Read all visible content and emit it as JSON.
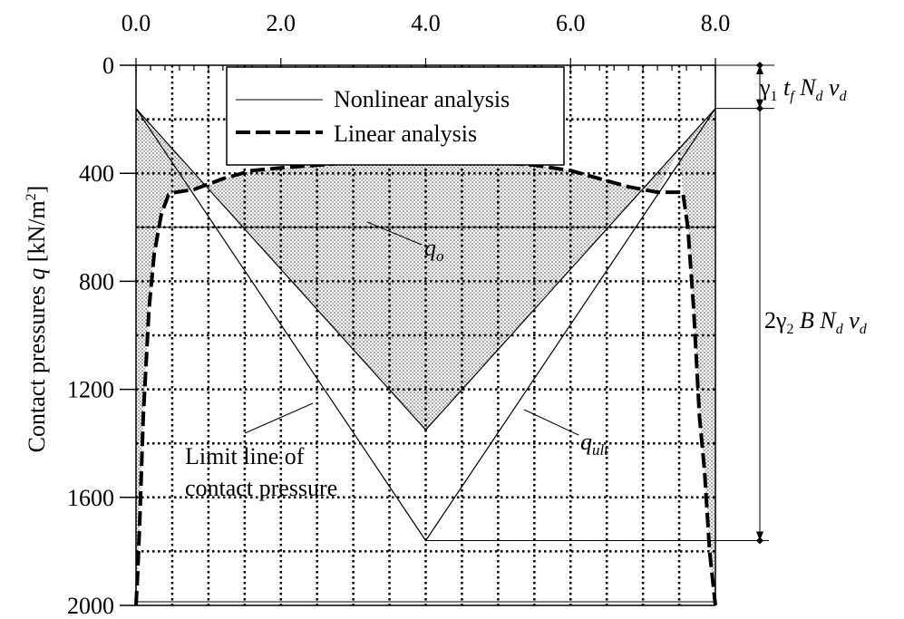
{
  "chart_data": {
    "type": "line",
    "ylabel": "Contact pressures q [kN/m²]",
    "ylabel_plain": "Contact pressures ",
    "ylabel_var": "q",
    "ylabel_unit": " [kN/m",
    "ylabel_sup": "2",
    "ylabel_end": "]",
    "xlim": [
      0,
      8.0
    ],
    "ylim": [
      2000,
      0
    ],
    "y_inverted": true,
    "x_ticks": [
      0.0,
      2.0,
      4.0,
      6.0,
      8.0
    ],
    "x_tick_labels": [
      "0.0",
      "2.0",
      "4.0",
      "6.0",
      "8.0"
    ],
    "y_ticks": [
      0,
      400,
      800,
      1200,
      1600,
      2000
    ],
    "y_tick_labels": [
      "0",
      "400",
      "800",
      "1200",
      "1600",
      "2000"
    ],
    "grid": true,
    "legend_position": "top-center",
    "series": [
      {
        "name": "Nonlinear analysis",
        "style": "thin-solid",
        "x": [
          0.0,
          4.0,
          8.0
        ],
        "y": [
          160,
          1350,
          160
        ]
      },
      {
        "name": "Linear analysis",
        "style": "thick-dashed",
        "x": [
          0.0,
          0.02,
          0.05,
          0.1,
          0.18,
          0.25,
          0.35,
          0.45,
          0.55,
          0.8,
          1.2,
          1.6,
          2.0,
          2.5,
          3.0,
          3.5,
          4.0,
          4.5,
          5.0,
          5.5,
          6.0,
          6.4,
          6.8,
          7.2,
          7.55,
          7.62,
          7.7,
          7.78,
          7.85,
          7.92,
          7.96,
          8.0
        ],
        "y": [
          2000,
          1900,
          1700,
          1300,
          900,
          700,
          550,
          480,
          470,
          460,
          420,
          390,
          380,
          370,
          360,
          355,
          355,
          355,
          360,
          370,
          390,
          420,
          450,
          470,
          470,
          600,
          900,
          1300,
          1500,
          1800,
          1900,
          2000
        ]
      },
      {
        "name": "Limit line of contact pressure",
        "style": "thin-solid",
        "x": [
          0.0,
          4.0,
          8.0
        ],
        "y": [
          160,
          1760,
          160
        ]
      }
    ],
    "reference_lines": [
      {
        "label": "q_o",
        "y": 600
      },
      {
        "y": 1760
      }
    ],
    "annotations": {
      "qo_main": "q",
      "qo_sub": "o",
      "qult_main": "q",
      "qult_sub": "ult",
      "limit_line_1": "Limit line of",
      "limit_line_2": "contact pressure",
      "top_dim_pre": "γ",
      "top_dim_sub1": "1",
      "top_dim_tf": " t",
      "top_dim_tf_sub": "f",
      "top_dim_N": " N",
      "top_dim_N_sub": "d",
      "top_dim_v": " v",
      "top_dim_v_sub": "d",
      "bottom_dim_pre": "2γ",
      "bottom_dim_sub2": "2",
      "bottom_dim_B": " B",
      "bottom_dim_N": " N",
      "bottom_dim_N_sub": "d",
      "bottom_dim_v": " v",
      "bottom_dim_v_sub": "d",
      "top_dim_range": [
        0,
        160
      ],
      "bottom_dim_range": [
        160,
        1760
      ]
    }
  }
}
